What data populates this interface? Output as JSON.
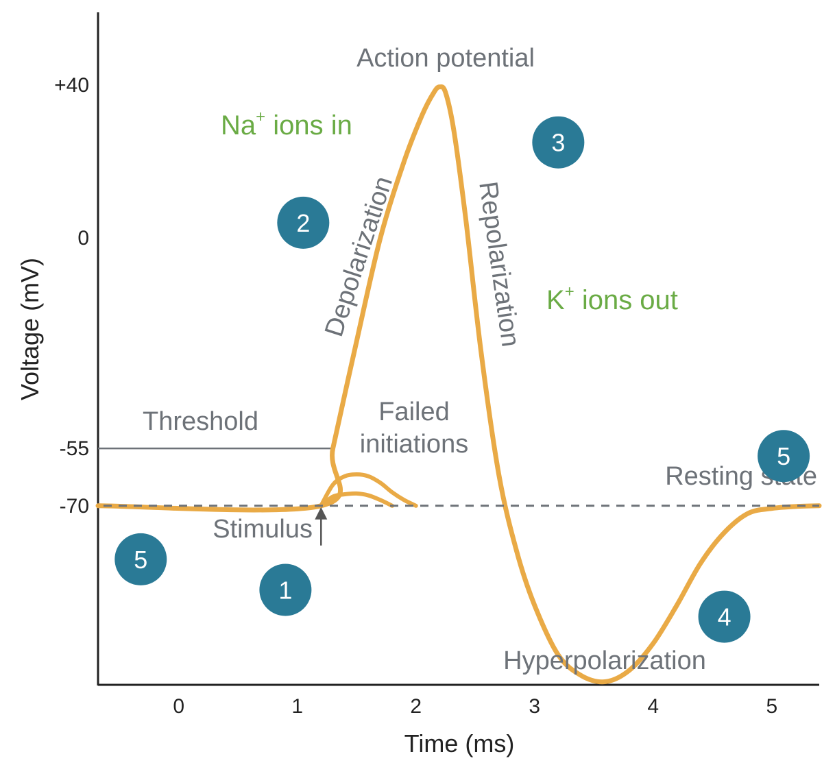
{
  "chart_data": {
    "type": "line",
    "title": "",
    "xlabel": "Time (ms)",
    "ylabel": "Voltage (mV)",
    "x_ticks": [
      "0",
      "1",
      "2",
      "3",
      "4",
      "5"
    ],
    "y_ticks": [
      {
        "value": 40,
        "label": "+40"
      },
      {
        "value": 0,
        "label": "0"
      },
      {
        "value": -55,
        "label": "-55"
      },
      {
        "value": -70,
        "label": "-70"
      }
    ],
    "xlim": [
      -0.68,
      5.4
    ],
    "ylim": [
      -117,
      59
    ],
    "grid": false,
    "colors": {
      "curve": "#e9aa46",
      "badge": "#2a7a96",
      "label": "#6d7278",
      "ions": "#6aab45",
      "axis": "#222222"
    },
    "series": [
      {
        "role": "action-potential",
        "x": [
          -0.68,
          1.2,
          1.3,
          1.5,
          1.7,
          1.9,
          2.05,
          2.15,
          2.2,
          2.25,
          2.32,
          2.42,
          2.55,
          2.7,
          2.85,
          3.0,
          3.2,
          3.4,
          3.6,
          3.8,
          4.0,
          4.2,
          4.4,
          4.6,
          4.8,
          5.0,
          5.2,
          5.4
        ],
        "y": [
          -70,
          -70,
          -55,
          -27,
          0,
          20,
          32,
          38,
          39.5,
          38,
          28,
          5,
          -30,
          -62,
          -82,
          -96,
          -109,
          -114.5,
          -116,
          -113,
          -106,
          -96,
          -85,
          -77,
          -72,
          -70.7,
          -70.2,
          -70
        ]
      },
      {
        "role": "failed-initiation",
        "x": [
          1.2,
          1.3,
          1.4,
          1.5,
          1.6,
          1.7,
          1.8,
          1.9,
          2.0
        ],
        "y": [
          -70,
          -64.5,
          -62.3,
          -61.8,
          -62.3,
          -64,
          -66.5,
          -68.5,
          -70
        ]
      },
      {
        "role": "failed-initiation",
        "x": [
          1.2,
          1.3,
          1.4,
          1.5,
          1.6,
          1.7,
          1.8
        ],
        "y": [
          -70,
          -67.6,
          -67,
          -66.8,
          -67.3,
          -68.5,
          -70
        ]
      }
    ],
    "reference_lines": [
      {
        "label": "Threshold",
        "value": -55
      },
      {
        "label": "Resting state",
        "value": -70
      }
    ],
    "annotations": {
      "action_potential": "Action potential",
      "na_text": "Na",
      "na_sup": "+",
      "na_rest": " ions in",
      "k_text": "K",
      "k_sup": "+",
      "k_rest": " ions out",
      "depolarization": "Depolarization",
      "repolarization": "Repolarization",
      "threshold": "Threshold",
      "failed_line1": "Failed",
      "failed_line2": "initiations",
      "resting_state": "Resting state",
      "stimulus": "Stimulus",
      "hyperpolarization": "Hyperpolarization"
    },
    "stimulus_x": 1.2,
    "phase_badges": [
      {
        "label": "1",
        "x": 0.9,
        "y": -92
      },
      {
        "label": "2",
        "x": 1.05,
        "y": 4
      },
      {
        "label": "3",
        "x": 3.2,
        "y": 25
      },
      {
        "label": "4",
        "x": 4.6,
        "y": -99
      },
      {
        "label": "5",
        "x": -0.32,
        "y": -84
      },
      {
        "label": "5",
        "x": 5.1,
        "y": -57
      }
    ]
  }
}
